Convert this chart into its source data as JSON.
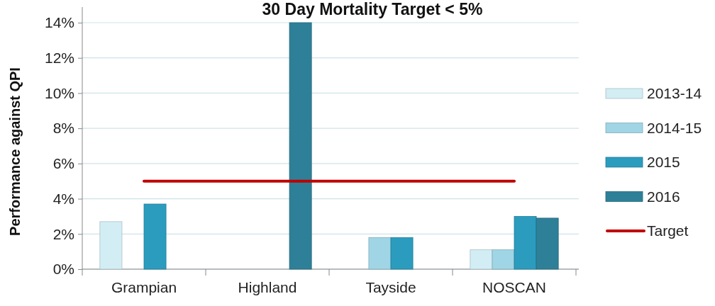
{
  "chart_data": {
    "type": "bar",
    "title": "30 Day Mortality Target < 5%",
    "ylabel": "Performance against QPI",
    "categories": [
      "Grampian",
      "Highland",
      "Tayside",
      "NOSCAN"
    ],
    "series": [
      {
        "name": "2013-14",
        "color": "#d3edf4",
        "values": [
          2.7,
          null,
          null,
          1.1
        ]
      },
      {
        "name": "2014-15",
        "color": "#9fd5e5",
        "values": [
          null,
          null,
          1.8,
          1.1
        ]
      },
      {
        "name": "2015",
        "color": "#2b9cbd",
        "values": [
          3.7,
          null,
          1.8,
          3.0
        ]
      },
      {
        "name": "2016",
        "color": "#2e8098",
        "values": [
          null,
          14,
          null,
          2.9
        ]
      },
      {
        "name": "Target",
        "type": "line",
        "color": "#c00000",
        "values": [
          5,
          5,
          5,
          5
        ]
      }
    ],
    "ylim": [
      0,
      14
    ],
    "yticks": [
      {
        "value": 0,
        "label": "0%"
      },
      {
        "value": 2,
        "label": "2%"
      },
      {
        "value": 4,
        "label": "4%"
      },
      {
        "value": 6,
        "label": "6%"
      },
      {
        "value": 8,
        "label": "8%"
      },
      {
        "value": 10,
        "label": "10%"
      },
      {
        "value": 12,
        "label": "12%"
      },
      {
        "value": 14,
        "label": "14%"
      }
    ],
    "grid": "y",
    "legend": "right"
  }
}
